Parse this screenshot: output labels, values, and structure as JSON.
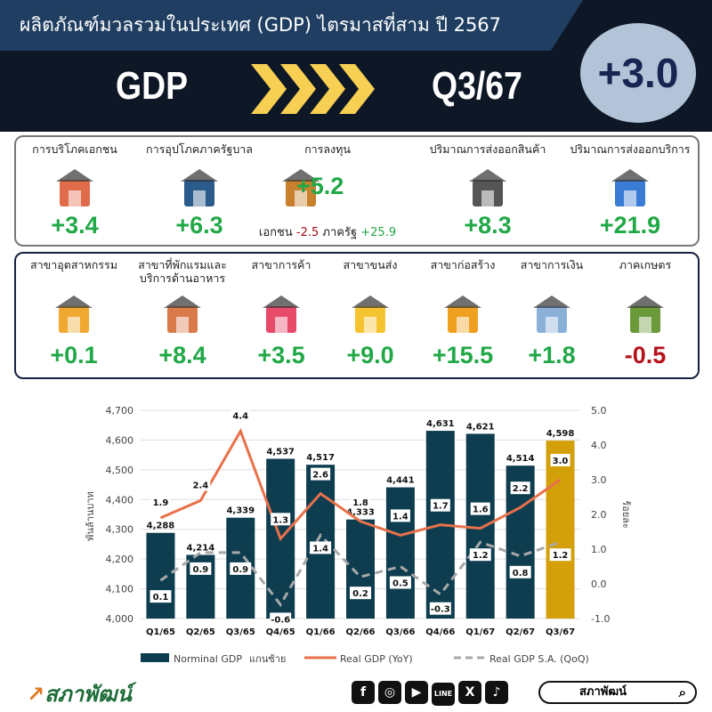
{
  "header": {
    "title": "ผลิตภัณฑ์มวลรวมในประเทศ (GDP) ไตรมาสที่สาม ปี 2567",
    "gdp": "GDP",
    "quarter": "Q3/67",
    "headline": "+3.0"
  },
  "demand": [
    {
      "label": "การบริโภคเอกชน",
      "value": "+3.4",
      "icon": "house-icon"
    },
    {
      "label": "การอุปโภคภาครัฐบาล",
      "value": "+6.3",
      "icon": "government-building-icon"
    },
    {
      "label": "การลงทุน",
      "value": "+5.2",
      "icon": "investment-icon",
      "private_label": "เอกชน",
      "private_value": "-2.5",
      "public_label": "ภาครัฐ",
      "public_value": "+25.9"
    },
    {
      "label": "ปริมาณการส่งออกสินค้า",
      "value": "+8.3",
      "icon": "cargo-ship-icon"
    },
    {
      "label": "ปริมาณการส่งออกบริการ",
      "value": "+21.9",
      "icon": "service-person-icon"
    }
  ],
  "sectors": [
    {
      "label": "สาขาอุตสาหกรรม",
      "value": "+0.1",
      "icon": "factory-icon"
    },
    {
      "label": "สาขาที่พักแรมและ บริการด้านอาหาร",
      "value": "+8.4",
      "icon": "hotel-icon"
    },
    {
      "label": "สาขาการค้า",
      "value": "+3.5",
      "icon": "shopping-cart-icon"
    },
    {
      "label": "สาขาขนส่ง",
      "value": "+9.0",
      "icon": "transport-icon"
    },
    {
      "label": "สาขาก่อสร้าง",
      "value": "+15.5",
      "icon": "construction-crane-icon"
    },
    {
      "label": "สาขาการเงิน",
      "value": "+1.8",
      "icon": "bank-icon"
    },
    {
      "label": "ภาคเกษตร",
      "value": "-0.5",
      "icon": "tractor-icon"
    }
  ],
  "colors": {
    "positive": "#21a847",
    "negative": "#b5121b",
    "bar": "#0e3d50",
    "bar_highlight": "#d4a00a",
    "yoy": "#e8714a",
    "qoq": "#a8a8a8"
  },
  "chart_data": {
    "type": "bar",
    "categories": [
      "Q1/65",
      "Q2/65",
      "Q3/65",
      "Q4/65",
      "Q1/66",
      "Q2/66",
      "Q3/66",
      "Q4/66",
      "Q1/67",
      "Q2/67",
      "Q3/67"
    ],
    "ylabel": "พันล้านบาท",
    "y2label": "ร้อยละ",
    "ylim": [
      4000,
      4700
    ],
    "yticks": [
      "4,000",
      "4,100",
      "4,200",
      "4,300",
      "4,400",
      "4,500",
      "4,600",
      "4,700"
    ],
    "y2lim": [
      -1.0,
      5.0
    ],
    "y2ticks": [
      "-1.0",
      "0.0",
      "1.0",
      "2.0",
      "3.0",
      "4.0",
      "5.0"
    ],
    "grid": true,
    "legend": "bottom",
    "series": [
      {
        "name": "Norminal GDP",
        "name_suffix": "แกนซ้าย",
        "type": "bar",
        "axis": "left",
        "values": [
          4288,
          4214,
          4339,
          4537,
          4517,
          4333,
          4441,
          4631,
          4621,
          4514,
          4598
        ],
        "labels": [
          "4,288",
          "4,214",
          "4,339",
          "4,537",
          "4,517",
          "4,333",
          "4,441",
          "4,631",
          "4,621",
          "4,514",
          "4,598"
        ]
      },
      {
        "name": "Real GDP (YoY)",
        "type": "line",
        "axis": "right",
        "values": [
          1.9,
          2.4,
          4.4,
          1.3,
          2.6,
          1.8,
          1.4,
          1.7,
          1.6,
          2.2,
          3.0
        ]
      },
      {
        "name": "Real GDP S.A. (QoQ)",
        "type": "dashed-line",
        "axis": "right",
        "values": [
          0.1,
          0.9,
          0.9,
          -0.6,
          1.4,
          0.2,
          0.5,
          -0.3,
          1.2,
          0.8,
          1.2
        ]
      }
    ]
  },
  "footer": {
    "brand": "สภาพัฒน์",
    "social": [
      "f",
      "◎",
      "▶",
      "LINE",
      "X",
      "♪"
    ],
    "search_text": "สภาพัฒน์"
  }
}
